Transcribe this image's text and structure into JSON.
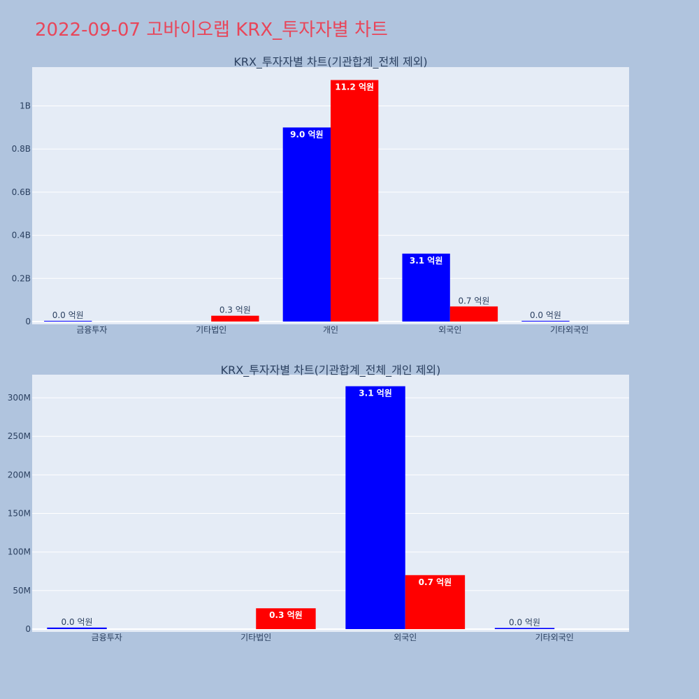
{
  "page_title": "2022-09-07 고바이오랩 KRX_투자자별 차트",
  "colors": {
    "background": "#b0c4de",
    "plot_bg": "#e5ecf6",
    "buy": "#0000ff",
    "sell": "#ff0000",
    "title": "#e8465a",
    "text": "#2a3f5f"
  },
  "chart_data": [
    {
      "type": "bar",
      "title": "KRX_투자자별 차트(기관합계_전체 제외)",
      "categories": [
        "금융투자",
        "기타법인",
        "개인",
        "외국인",
        "기타외국인"
      ],
      "ylim": [
        0,
        1180000000
      ],
      "yticks": [
        0,
        200000000,
        400000000,
        600000000,
        800000000,
        1000000000
      ],
      "ytick_labels": [
        "0",
        "0.2B",
        "0.4B",
        "0.6B",
        "0.8B",
        "1B"
      ],
      "series": [
        {
          "color": "#0000ff",
          "values": [
            2000000,
            null,
            900000000,
            315000000,
            1500000
          ],
          "labels": [
            "0.0 억원",
            "",
            "9.0 억원",
            "3.1 억원",
            "0.0 억원"
          ]
        },
        {
          "color": "#ff0000",
          "values": [
            null,
            27000000,
            1120000000,
            70000000,
            null
          ],
          "labels": [
            "",
            "0.3 억원",
            "11.2 억원",
            "0.7 억원",
            ""
          ]
        }
      ]
    },
    {
      "type": "bar",
      "title": "KRX_투자자별 차트(기관합계_전체_개인 제외)",
      "categories": [
        "금융투자",
        "기타법인",
        "외국인",
        "기타외국인"
      ],
      "ylim": [
        0,
        330000000
      ],
      "yticks": [
        0,
        50000000,
        100000000,
        150000000,
        200000000,
        250000000,
        300000000
      ],
      "ytick_labels": [
        "0",
        "50M",
        "100M",
        "150M",
        "200M",
        "250M",
        "300M"
      ],
      "series": [
        {
          "color": "#0000ff",
          "values": [
            2000000,
            null,
            315000000,
            1500000
          ],
          "labels": [
            "0.0 억원",
            "",
            "3.1 억원",
            "0.0 억원"
          ]
        },
        {
          "color": "#ff0000",
          "values": [
            null,
            27000000,
            70000000,
            null
          ],
          "labels": [
            "",
            "0.3 억원",
            "0.7 억원",
            ""
          ]
        }
      ]
    }
  ]
}
